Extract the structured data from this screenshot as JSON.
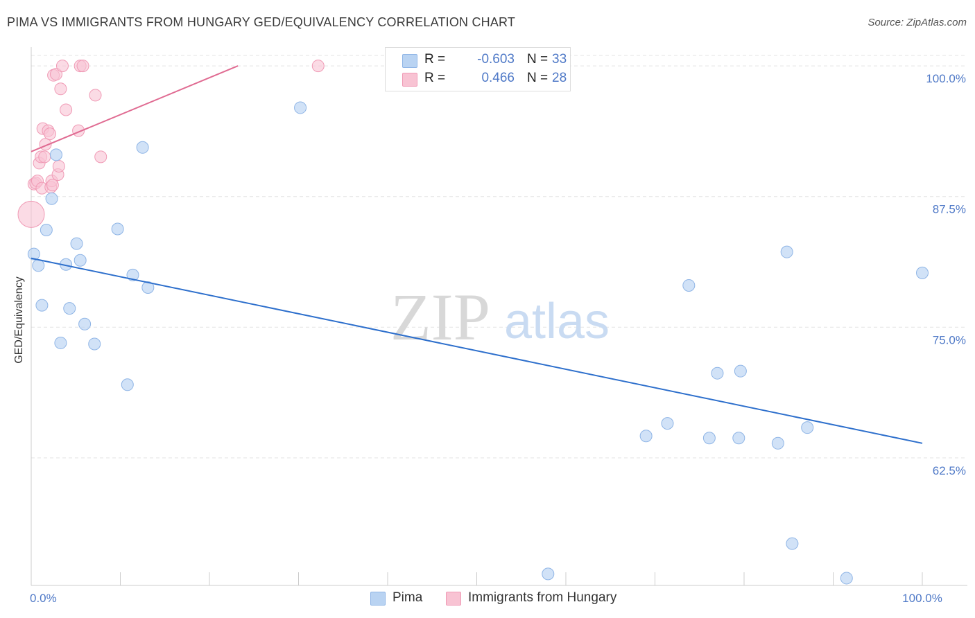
{
  "header": {
    "title": "PIMA VS IMMIGRANTS FROM HUNGARY GED/EQUIVALENCY CORRELATION CHART",
    "source": "Source: ZipAtlas.com"
  },
  "watermark": {
    "zip": "ZIP",
    "atlas": "atlas"
  },
  "stats": [
    {
      "r_label": "R =",
      "r_value": "-0.603",
      "n_label": "N =",
      "n_value": "33"
    },
    {
      "r_label": "R =",
      "r_value": "0.466",
      "n_label": "N =",
      "n_value": "28"
    }
  ],
  "legend": {
    "pima": "Pima",
    "hungary": "Immigrants from Hungary"
  },
  "colors": {
    "pima_fill": "#b9d3f2",
    "pima_stroke": "#8fb5e6",
    "pima_line": "#2d6fcc",
    "hungary_fill": "#f8c3d3",
    "hungary_stroke": "#f09ab5",
    "hungary_line": "#e06b92",
    "grid": "#e3e3e3",
    "tick_text": "#4f79c7"
  },
  "chart_data": {
    "type": "scatter",
    "title": "PIMA VS IMMIGRANTS FROM HUNGARY GED/EQUIVALENCY CORRELATION CHART",
    "xlabel": "",
    "ylabel": "GED/Equivalency",
    "xlim": [
      0,
      100
    ],
    "ylim": [
      50.3,
      101.0
    ],
    "x_tick_labels": [
      {
        "value": 0,
        "label": "0.0%"
      },
      {
        "value": 100,
        "label": "100.0%"
      }
    ],
    "y_ticks": [
      {
        "value": 100.0,
        "label": "100.0%"
      },
      {
        "value": 87.5,
        "label": "87.5%"
      },
      {
        "value": 75.0,
        "label": "75.0%"
      },
      {
        "value": 62.5,
        "label": "62.5%"
      }
    ],
    "series": [
      {
        "name": "Pima",
        "r": -0.603,
        "n": 33,
        "points": [
          {
            "x": 0.3,
            "y": 82.0
          },
          {
            "x": 0.8,
            "y": 80.9
          },
          {
            "x": 1.2,
            "y": 77.1
          },
          {
            "x": 1.7,
            "y": 84.3
          },
          {
            "x": 2.3,
            "y": 87.3
          },
          {
            "x": 2.8,
            "y": 91.5
          },
          {
            "x": 3.3,
            "y": 73.5
          },
          {
            "x": 3.9,
            "y": 81.0
          },
          {
            "x": 4.3,
            "y": 76.8
          },
          {
            "x": 5.1,
            "y": 83.0
          },
          {
            "x": 5.5,
            "y": 81.4
          },
          {
            "x": 6.0,
            "y": 75.3
          },
          {
            "x": 7.1,
            "y": 73.4
          },
          {
            "x": 9.7,
            "y": 84.4
          },
          {
            "x": 10.8,
            "y": 69.5
          },
          {
            "x": 11.4,
            "y": 80.0
          },
          {
            "x": 12.5,
            "y": 92.2
          },
          {
            "x": 13.1,
            "y": 78.8
          },
          {
            "x": 30.2,
            "y": 96.0
          },
          {
            "x": 58.0,
            "y": 51.4
          },
          {
            "x": 69.0,
            "y": 64.6
          },
          {
            "x": 71.4,
            "y": 65.8
          },
          {
            "x": 73.8,
            "y": 79.0
          },
          {
            "x": 76.1,
            "y": 64.4
          },
          {
            "x": 77.0,
            "y": 70.6
          },
          {
            "x": 79.4,
            "y": 64.4
          },
          {
            "x": 79.6,
            "y": 70.8
          },
          {
            "x": 83.8,
            "y": 63.9
          },
          {
            "x": 84.8,
            "y": 82.2
          },
          {
            "x": 85.4,
            "y": 54.3
          },
          {
            "x": 87.1,
            "y": 65.4
          },
          {
            "x": 91.5,
            "y": 51.0
          },
          {
            "x": 100.0,
            "y": 80.2
          }
        ],
        "trend": {
          "x0": 0,
          "y0": 81.6,
          "x1": 100,
          "y1": 63.9
        }
      },
      {
        "name": "Immigrants from Hungary",
        "r": 0.466,
        "n": 28,
        "points": [
          {
            "x": 0.0,
            "y": 85.8,
            "big": true
          },
          {
            "x": 0.3,
            "y": 88.7
          },
          {
            "x": 0.5,
            "y": 88.8
          },
          {
            "x": 0.7,
            "y": 89.0
          },
          {
            "x": 0.9,
            "y": 90.7
          },
          {
            "x": 1.1,
            "y": 91.3
          },
          {
            "x": 1.2,
            "y": 88.3
          },
          {
            "x": 1.3,
            "y": 94.0
          },
          {
            "x": 1.5,
            "y": 91.3
          },
          {
            "x": 1.6,
            "y": 92.5
          },
          {
            "x": 1.9,
            "y": 93.8
          },
          {
            "x": 2.1,
            "y": 93.5
          },
          {
            "x": 2.2,
            "y": 88.4
          },
          {
            "x": 2.3,
            "y": 89.0
          },
          {
            "x": 2.4,
            "y": 88.6
          },
          {
            "x": 2.5,
            "y": 99.1
          },
          {
            "x": 2.8,
            "y": 99.2
          },
          {
            "x": 3.0,
            "y": 89.6
          },
          {
            "x": 3.1,
            "y": 90.4
          },
          {
            "x": 3.3,
            "y": 97.8
          },
          {
            "x": 3.5,
            "y": 100.0
          },
          {
            "x": 3.9,
            "y": 95.8
          },
          {
            "x": 5.3,
            "y": 93.8
          },
          {
            "x": 5.5,
            "y": 100.0
          },
          {
            "x": 5.8,
            "y": 100.0
          },
          {
            "x": 7.2,
            "y": 97.2
          },
          {
            "x": 7.8,
            "y": 91.3
          },
          {
            "x": 32.2,
            "y": 100.0
          }
        ],
        "trend": {
          "x0": 0,
          "y0": 91.8,
          "x1": 23.2,
          "y1": 100.0
        }
      }
    ]
  }
}
